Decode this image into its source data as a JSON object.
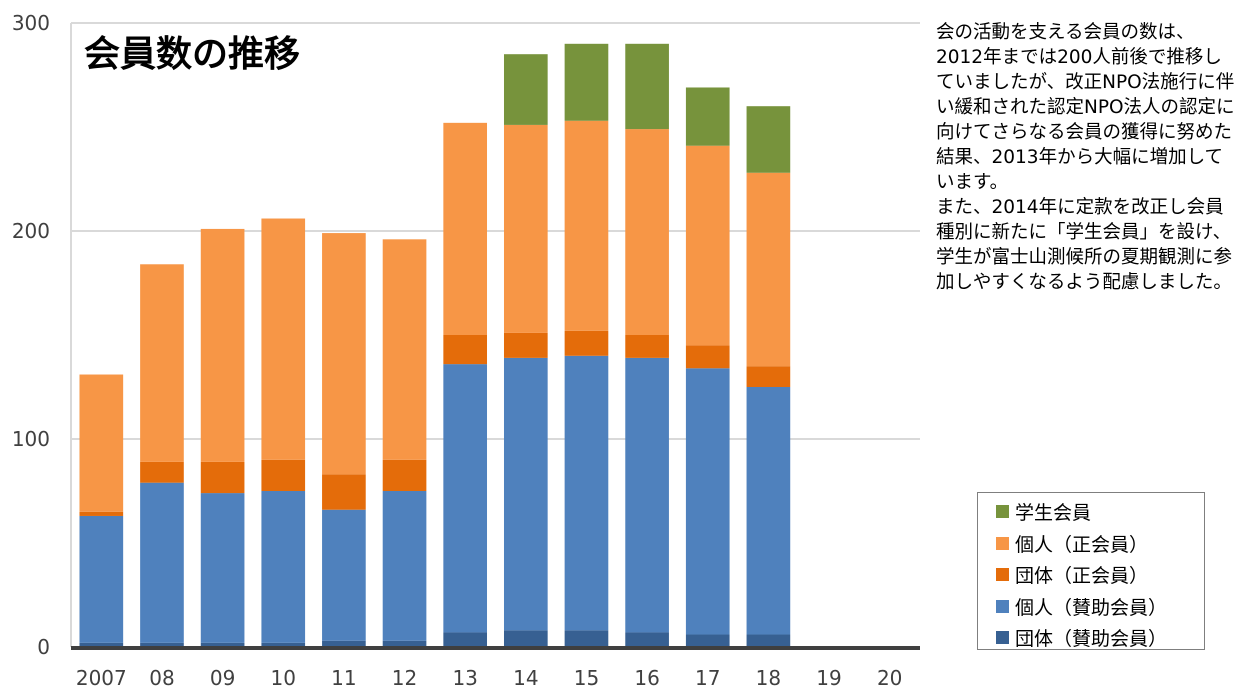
{
  "chart_data": {
    "type": "bar",
    "stacked": true,
    "title": "会員数の推移",
    "categories": [
      "2007",
      "08",
      "09",
      "10",
      "11",
      "12",
      "13",
      "14",
      "15",
      "16",
      "17",
      "18",
      "19",
      "20"
    ],
    "ylim": [
      0,
      300
    ],
    "yticks": [
      0,
      100,
      200,
      300
    ],
    "grid": true,
    "legend_position": "bottom-right",
    "series": [
      {
        "name": "団体（賛助会員）",
        "color": "#376092",
        "values": [
          2,
          2,
          2,
          2,
          3,
          3,
          7,
          8,
          8,
          7,
          6,
          6,
          null,
          null
        ]
      },
      {
        "name": "個人（賛助会員）",
        "color": "#4f81bd",
        "values": [
          61,
          77,
          72,
          73,
          63,
          72,
          129,
          131,
          132,
          132,
          128,
          119,
          null,
          null
        ]
      },
      {
        "name": "団体（正会員）",
        "color": "#e46c0a",
        "values": [
          2,
          10,
          15,
          15,
          17,
          15,
          14,
          12,
          12,
          11,
          11,
          10,
          null,
          null
        ]
      },
      {
        "name": "個人（正会員）",
        "color": "#f79646",
        "values": [
          66,
          95,
          112,
          116,
          116,
          106,
          102,
          100,
          101,
          99,
          96,
          93,
          null,
          null
        ]
      },
      {
        "name": "学生会員",
        "color": "#77933c",
        "values": [
          null,
          null,
          null,
          null,
          null,
          null,
          null,
          34,
          37,
          41,
          28,
          32,
          null,
          null
        ]
      }
    ]
  },
  "description": {
    "paragraphs": [
      "会の活動を支える会員の数は、2012年までは200人前後で推移していましたが、改正NPO法施行に伴い緩和された認定NPO法人の認定に向けてさらなる会員の獲得に努めた結果、2013年から大幅に増加しています。",
      "また、2014年に定款を改正し会員種別に新たに「学生会員」を設け、学生が富士山測候所の夏期観測に参加しやすくなるよう配慮しました。"
    ]
  },
  "colors": {
    "gridline": "#d9d9d9",
    "axis": "#404040",
    "baseline": "#3f3f3f"
  }
}
